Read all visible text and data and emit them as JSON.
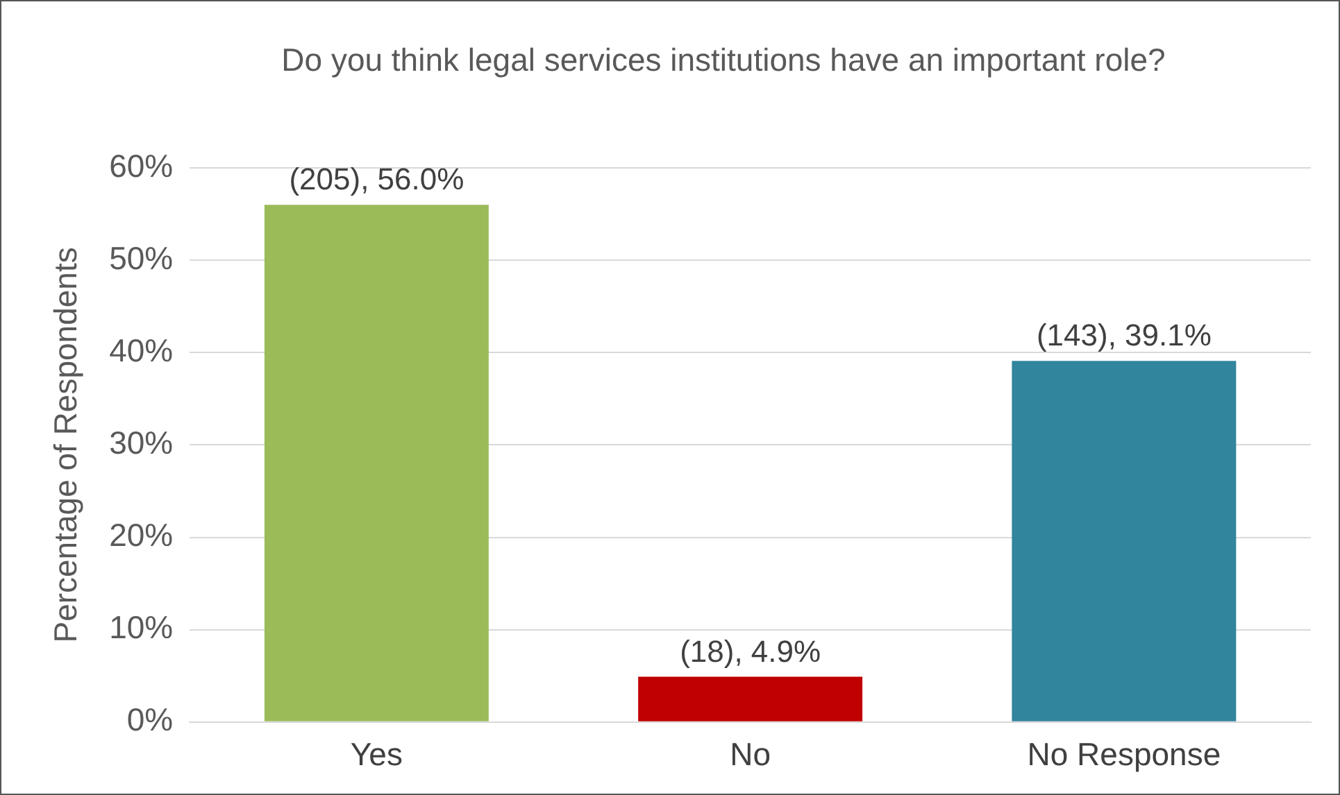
{
  "chart_data": {
    "type": "bar",
    "title": "Do you think legal services institutions have an important role?",
    "ylabel": "Percentage of Respondents",
    "categories": [
      "Yes",
      "No",
      "No Response"
    ],
    "values": [
      56.0,
      4.9,
      39.1
    ],
    "colors": [
      "#9bbb59",
      "#c00000",
      "#31859c"
    ],
    "value_labels": [
      "(205), 56.0%",
      "(18), 4.9%",
      "(143), 39.1%"
    ],
    "ylim": [
      0,
      60
    ],
    "yticks": [
      {
        "value": 0,
        "label": "0%"
      },
      {
        "value": 10,
        "label": "10%"
      },
      {
        "value": 20,
        "label": "20%"
      },
      {
        "value": 30,
        "label": "30%"
      },
      {
        "value": 40,
        "label": "40%"
      },
      {
        "value": 50,
        "label": "50%"
      },
      {
        "value": 60,
        "label": "60%"
      }
    ],
    "grid": "y",
    "legend": false
  }
}
